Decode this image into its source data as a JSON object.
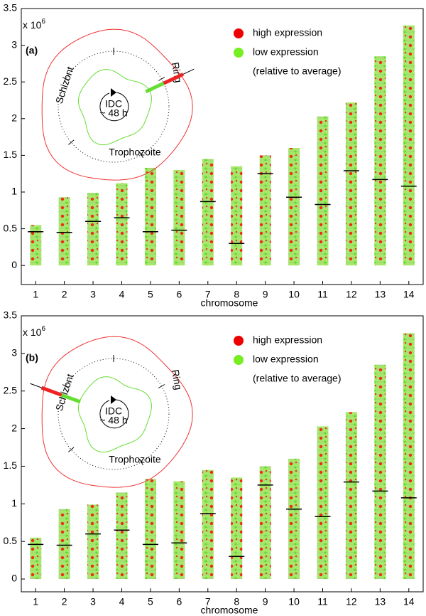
{
  "chart_data": [
    {
      "type": "chromosome-map",
      "panel_label": "(a)",
      "multiplier": {
        "base": "x 10",
        "exponent": "6"
      },
      "x_label": "chromosome",
      "categories": [
        "1",
        "2",
        "3",
        "4",
        "5",
        "6",
        "7",
        "8",
        "9",
        "10",
        "11",
        "12",
        "13",
        "14"
      ],
      "values": [
        0.55,
        0.93,
        0.99,
        1.12,
        1.33,
        1.3,
        1.45,
        1.35,
        1.5,
        1.6,
        2.03,
        2.22,
        2.85,
        3.27
      ],
      "centromeres": [
        0.46,
        0.45,
        0.6,
        0.65,
        0.46,
        0.48,
        0.87,
        0.3,
        1.25,
        0.93,
        0.83,
        1.29,
        1.17,
        1.08
      ],
      "ylim": [
        -0.26,
        3.5
      ],
      "yticks": [
        0,
        0.5,
        1,
        1.5,
        2,
        2.5,
        3,
        3.5
      ],
      "legend": [
        {
          "name": "high expression",
          "color": "#ee0000"
        },
        {
          "name": "low expression",
          "color": "#77ee22"
        }
      ],
      "legend_note": "(relative to average)",
      "inset": {
        "stages": [
          "Ring",
          "Schizont",
          "Trophozoite"
        ],
        "center": [
          "IDC",
          "~ 48 h"
        ],
        "highlight": "Ring"
      }
    },
    {
      "type": "chromosome-map",
      "panel_label": "(b)",
      "multiplier": {
        "base": "x 10",
        "exponent": "6"
      },
      "x_label": "chromosome",
      "categories": [
        "1",
        "2",
        "3",
        "4",
        "5",
        "6",
        "7",
        "8",
        "9",
        "10",
        "11",
        "12",
        "13",
        "14"
      ],
      "values": [
        0.55,
        0.93,
        0.99,
        1.15,
        1.33,
        1.3,
        1.45,
        1.35,
        1.5,
        1.6,
        2.03,
        2.22,
        2.85,
        3.27
      ],
      "centromeres": [
        0.46,
        0.45,
        0.6,
        0.65,
        0.46,
        0.48,
        0.87,
        0.3,
        1.25,
        0.93,
        0.83,
        1.29,
        1.17,
        1.08
      ],
      "ylim": [
        -0.17,
        3.5
      ],
      "yticks": [
        0,
        0.5,
        1,
        1.5,
        2,
        2.5,
        3,
        3.5
      ],
      "legend": [
        {
          "name": "high expression",
          "color": "#ee0000"
        },
        {
          "name": "low expression",
          "color": "#77ee22"
        }
      ],
      "legend_note": "(relative to average)",
      "inset": {
        "stages": [
          "Ring",
          "Schizont",
          "Trophozoite"
        ],
        "center": [
          "IDC",
          "~ 48 h"
        ],
        "highlight": "Schizont"
      }
    }
  ]
}
